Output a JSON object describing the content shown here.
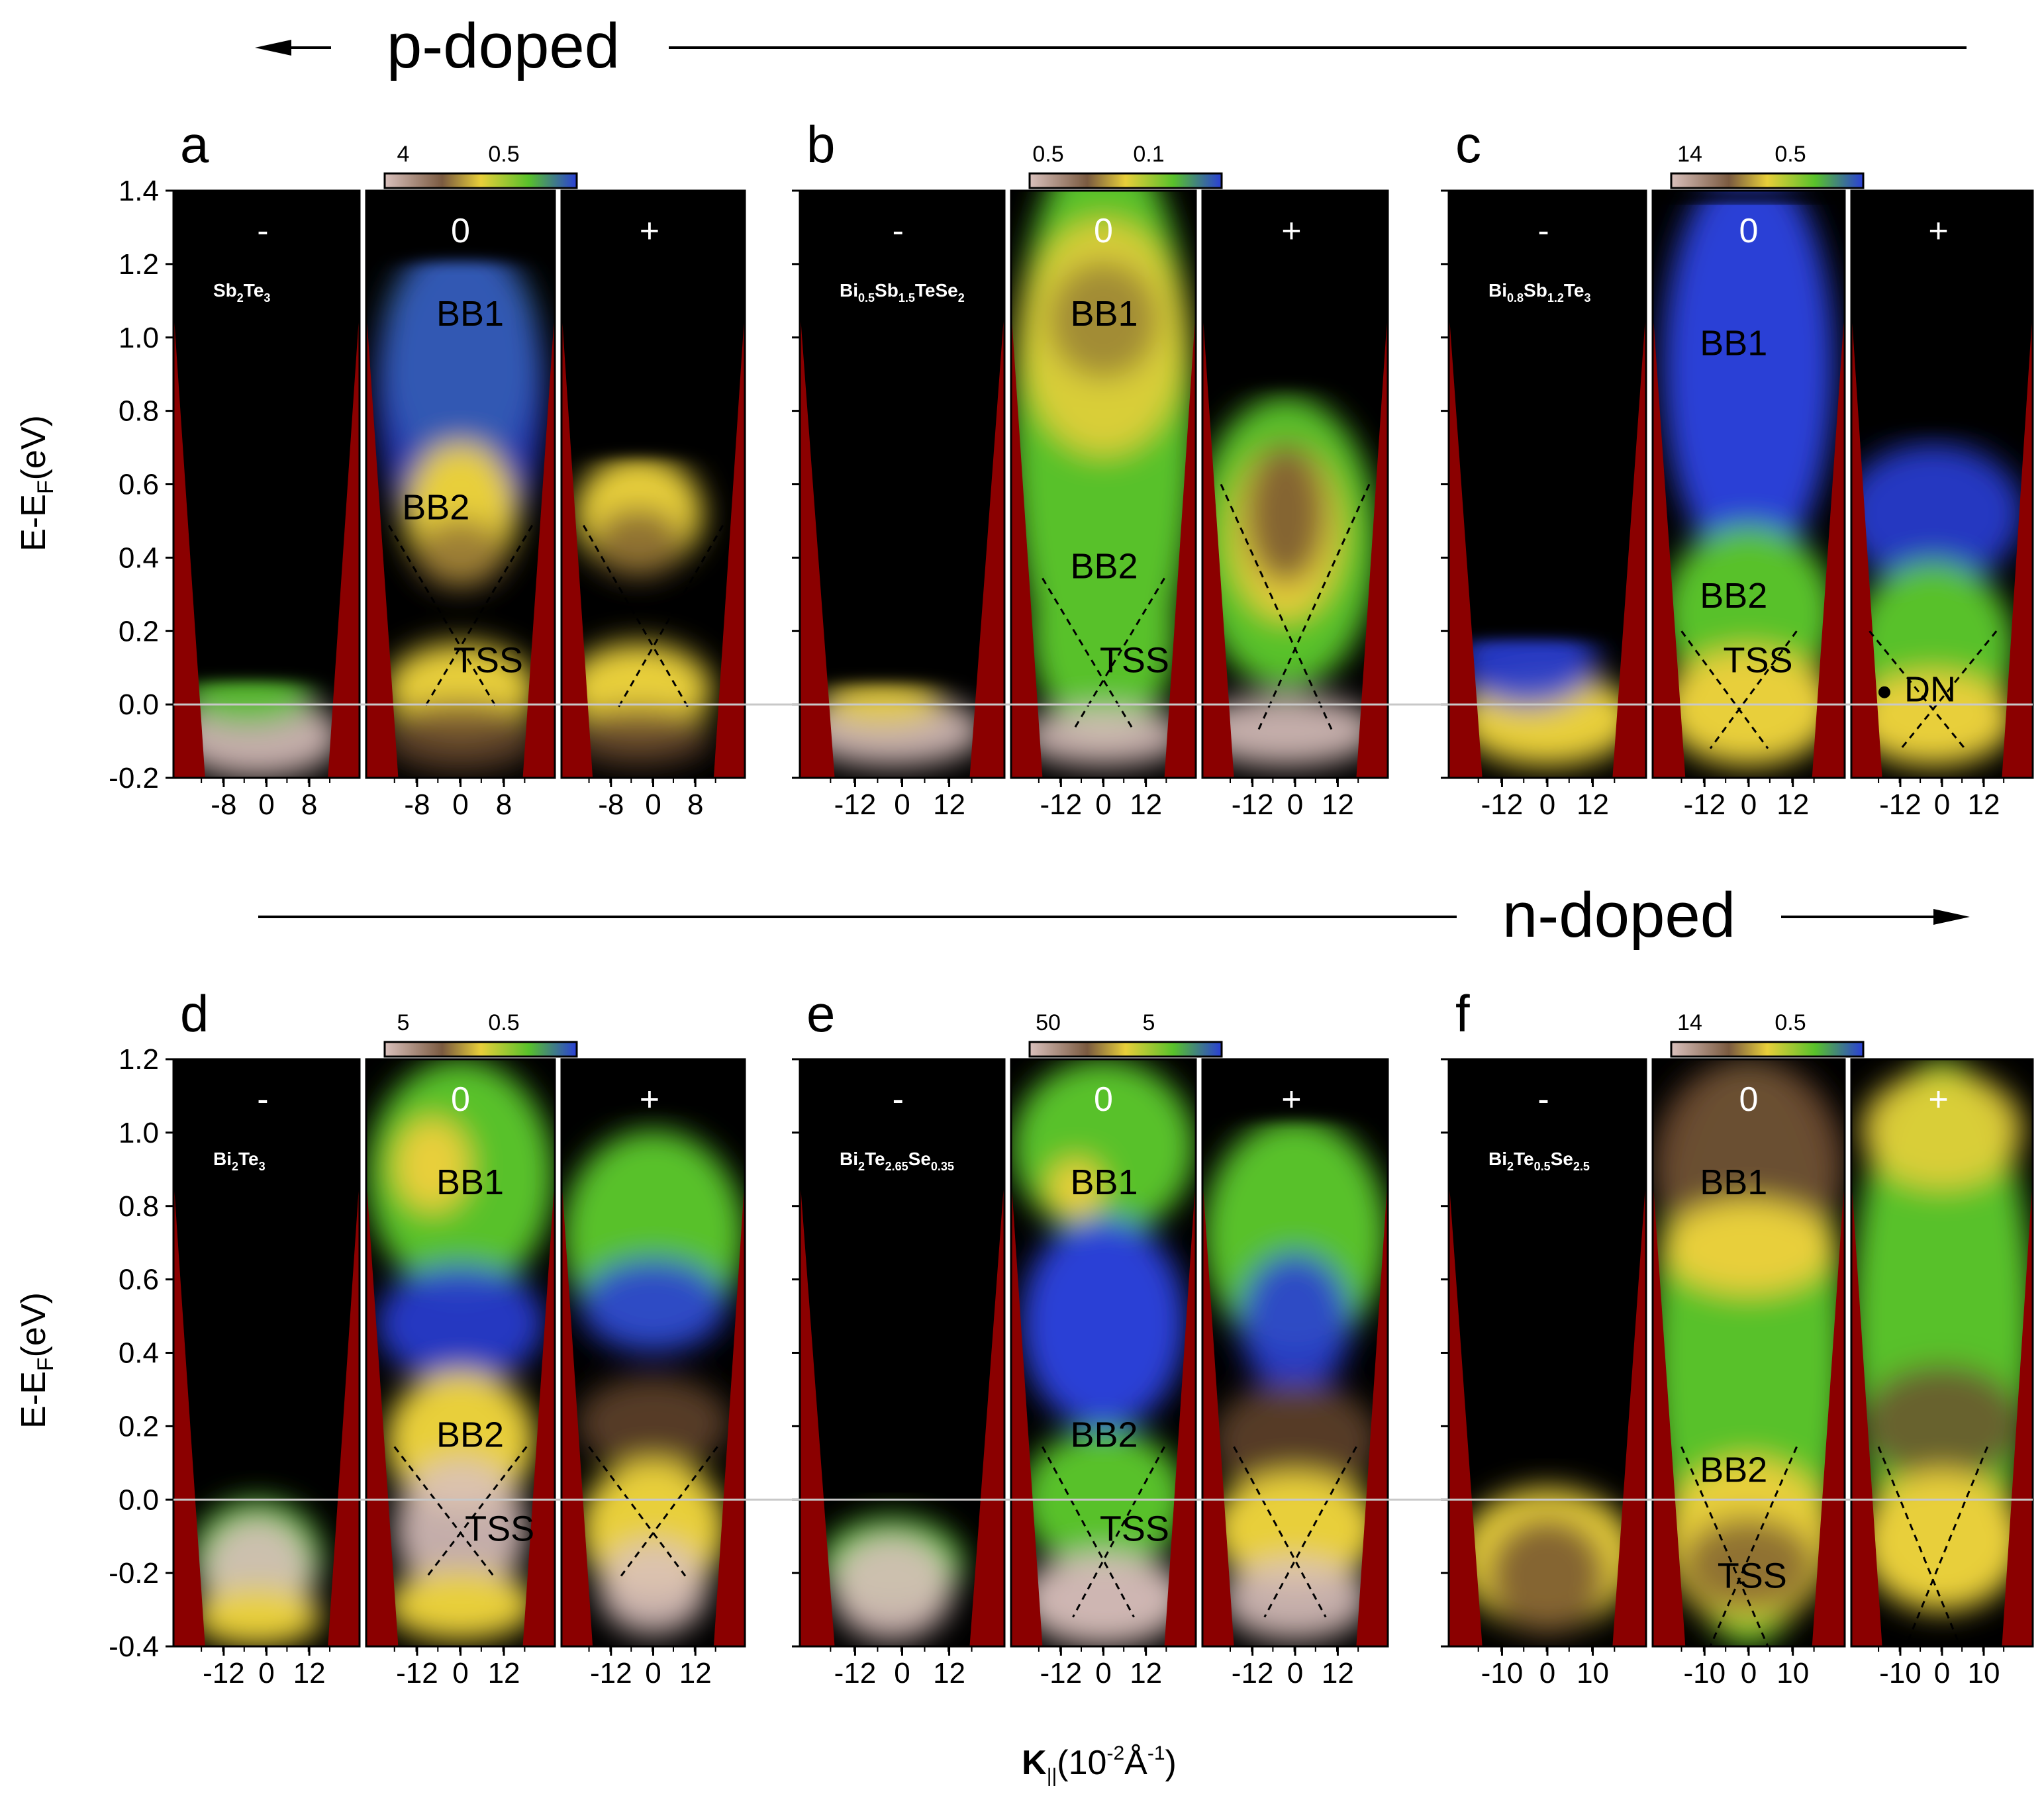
{
  "doping": {
    "top_label": "p-doped",
    "bottom_label": "n-doped"
  },
  "axes": {
    "y_label": "E-E",
    "y_label_sub": "F",
    "y_label_unit": "(eV)",
    "x_label": "K",
    "x_label_sub": "||",
    "x_label_unit": "(10",
    "x_label_exp": "-2",
    "x_label_tail": "Å",
    "x_label_exp2": "-1",
    "x_label_end": ")"
  },
  "rows": [
    {
      "y_ticks": [
        "1.4",
        "1.2",
        "1.0",
        "0.8",
        "0.6",
        "0.4",
        "0.2",
        "0.0",
        "-0.2"
      ],
      "ylim": [
        -0.2,
        1.4
      ]
    },
    {
      "y_ticks": [
        "1.2",
        "1.0",
        "0.8",
        "0.6",
        "0.4",
        "0.2",
        "0.0",
        "-0.2",
        "-0.4"
      ],
      "ylim": [
        -0.4,
        1.2
      ]
    }
  ],
  "panels": [
    {
      "letter": "a",
      "material": {
        "parts": [
          [
            "Sb",
            ""
          ],
          [
            "2",
            "sub"
          ],
          [
            "Te",
            ""
          ],
          [
            "3",
            "sub"
          ]
        ]
      },
      "colorbar": [
        "4",
        "0.5"
      ],
      "subpanels": [
        "-",
        "0",
        "+"
      ],
      "x_ticks": [
        [
          "-8",
          "0",
          "8"
        ],
        [
          "-8",
          "0",
          "8"
        ],
        [
          "-8",
          "0",
          "8"
        ]
      ],
      "labels": [
        [
          "BB1",
          1
        ],
        [
          "BB2",
          1
        ],
        [
          "TSS",
          1
        ]
      ]
    },
    {
      "letter": "b",
      "material": {
        "parts": [
          [
            "Bi",
            ""
          ],
          [
            "0.5",
            "sub"
          ],
          [
            "Sb",
            ""
          ],
          [
            "1.5",
            "sub"
          ],
          [
            "TeSe",
            ""
          ],
          [
            "2",
            "sub"
          ]
        ]
      },
      "colorbar": [
        "0.5",
        "0.1"
      ],
      "subpanels": [
        "-",
        "0",
        "+"
      ],
      "x_ticks": [
        [
          "-12",
          "0",
          "12"
        ],
        [
          "-12",
          "0",
          "12"
        ],
        [
          "-12",
          "0",
          "12"
        ]
      ],
      "labels": [
        [
          "BB1",
          1
        ],
        [
          "BB2",
          1
        ],
        [
          "TSS",
          1
        ]
      ]
    },
    {
      "letter": "c",
      "material": {
        "parts": [
          [
            "Bi",
            ""
          ],
          [
            "0.8",
            "sub"
          ],
          [
            "Sb",
            ""
          ],
          [
            "1.2",
            "sub"
          ],
          [
            "Te",
            ""
          ],
          [
            "3",
            "sub"
          ]
        ]
      },
      "colorbar": [
        "14",
        "0.5"
      ],
      "subpanels": [
        "-",
        "0",
        "+"
      ],
      "x_ticks": [
        [
          "-12",
          "0",
          "12"
        ],
        [
          "-12",
          "0",
          "12"
        ],
        [
          "-12",
          "0",
          "12"
        ]
      ],
      "labels": [
        [
          "BB1",
          1
        ],
        [
          "BB2",
          1
        ],
        [
          "TSS",
          1
        ],
        [
          "DN",
          2
        ]
      ]
    },
    {
      "letter": "d",
      "material": {
        "parts": [
          [
            "Bi",
            ""
          ],
          [
            "2",
            "sub"
          ],
          [
            "Te",
            ""
          ],
          [
            "3",
            "sub"
          ]
        ]
      },
      "colorbar": [
        "5",
        "0.5"
      ],
      "subpanels": [
        "-",
        "0",
        "+"
      ],
      "x_ticks": [
        [
          "-12",
          "0",
          "12"
        ],
        [
          "-12",
          "0",
          "12"
        ],
        [
          "-12",
          "0",
          "12"
        ]
      ],
      "labels": [
        [
          "BB1",
          1
        ],
        [
          "BB2",
          1
        ],
        [
          "TSS",
          1
        ]
      ]
    },
    {
      "letter": "e",
      "material": {
        "parts": [
          [
            "Bi",
            ""
          ],
          [
            "2",
            "sub"
          ],
          [
            "Te",
            ""
          ],
          [
            "2.65",
            "sub"
          ],
          [
            "Se",
            ""
          ],
          [
            "0.35",
            "sub"
          ]
        ]
      },
      "colorbar": [
        "50",
        "5"
      ],
      "subpanels": [
        "-",
        "0",
        "+"
      ],
      "x_ticks": [
        [
          "-12",
          "0",
          "12"
        ],
        [
          "-12",
          "0",
          "12"
        ],
        [
          "-12",
          "0",
          "12"
        ]
      ],
      "labels": [
        [
          "BB1",
          1
        ],
        [
          "BB2",
          1
        ],
        [
          "TSS",
          1
        ]
      ]
    },
    {
      "letter": "f",
      "material": {
        "parts": [
          [
            "Bi",
            ""
          ],
          [
            "2",
            "sub"
          ],
          [
            "Te",
            ""
          ],
          [
            "0.5",
            "sub"
          ],
          [
            "Se",
            ""
          ],
          [
            "2.5",
            "sub"
          ]
        ]
      },
      "colorbar": [
        "14",
        "0.5"
      ],
      "subpanels": [
        "-",
        "0",
        "+"
      ],
      "x_ticks": [
        [
          "-10",
          "0",
          "10"
        ],
        [
          "-10",
          "0",
          "10"
        ],
        [
          "-10",
          "0",
          "10"
        ]
      ],
      "labels": [
        [
          "BB1",
          1
        ],
        [
          "BB2",
          1
        ],
        [
          "TSS",
          1
        ]
      ]
    }
  ],
  "colors": {
    "background": "#000000",
    "edge_fill": "#8b0000",
    "blue": "#2a3fd6",
    "green": "#58c12b",
    "yellow": "#e8cf3a",
    "brown": "#6b4a30",
    "pink": "#d9c0bc",
    "fermi_line": "#c8c8c8"
  }
}
